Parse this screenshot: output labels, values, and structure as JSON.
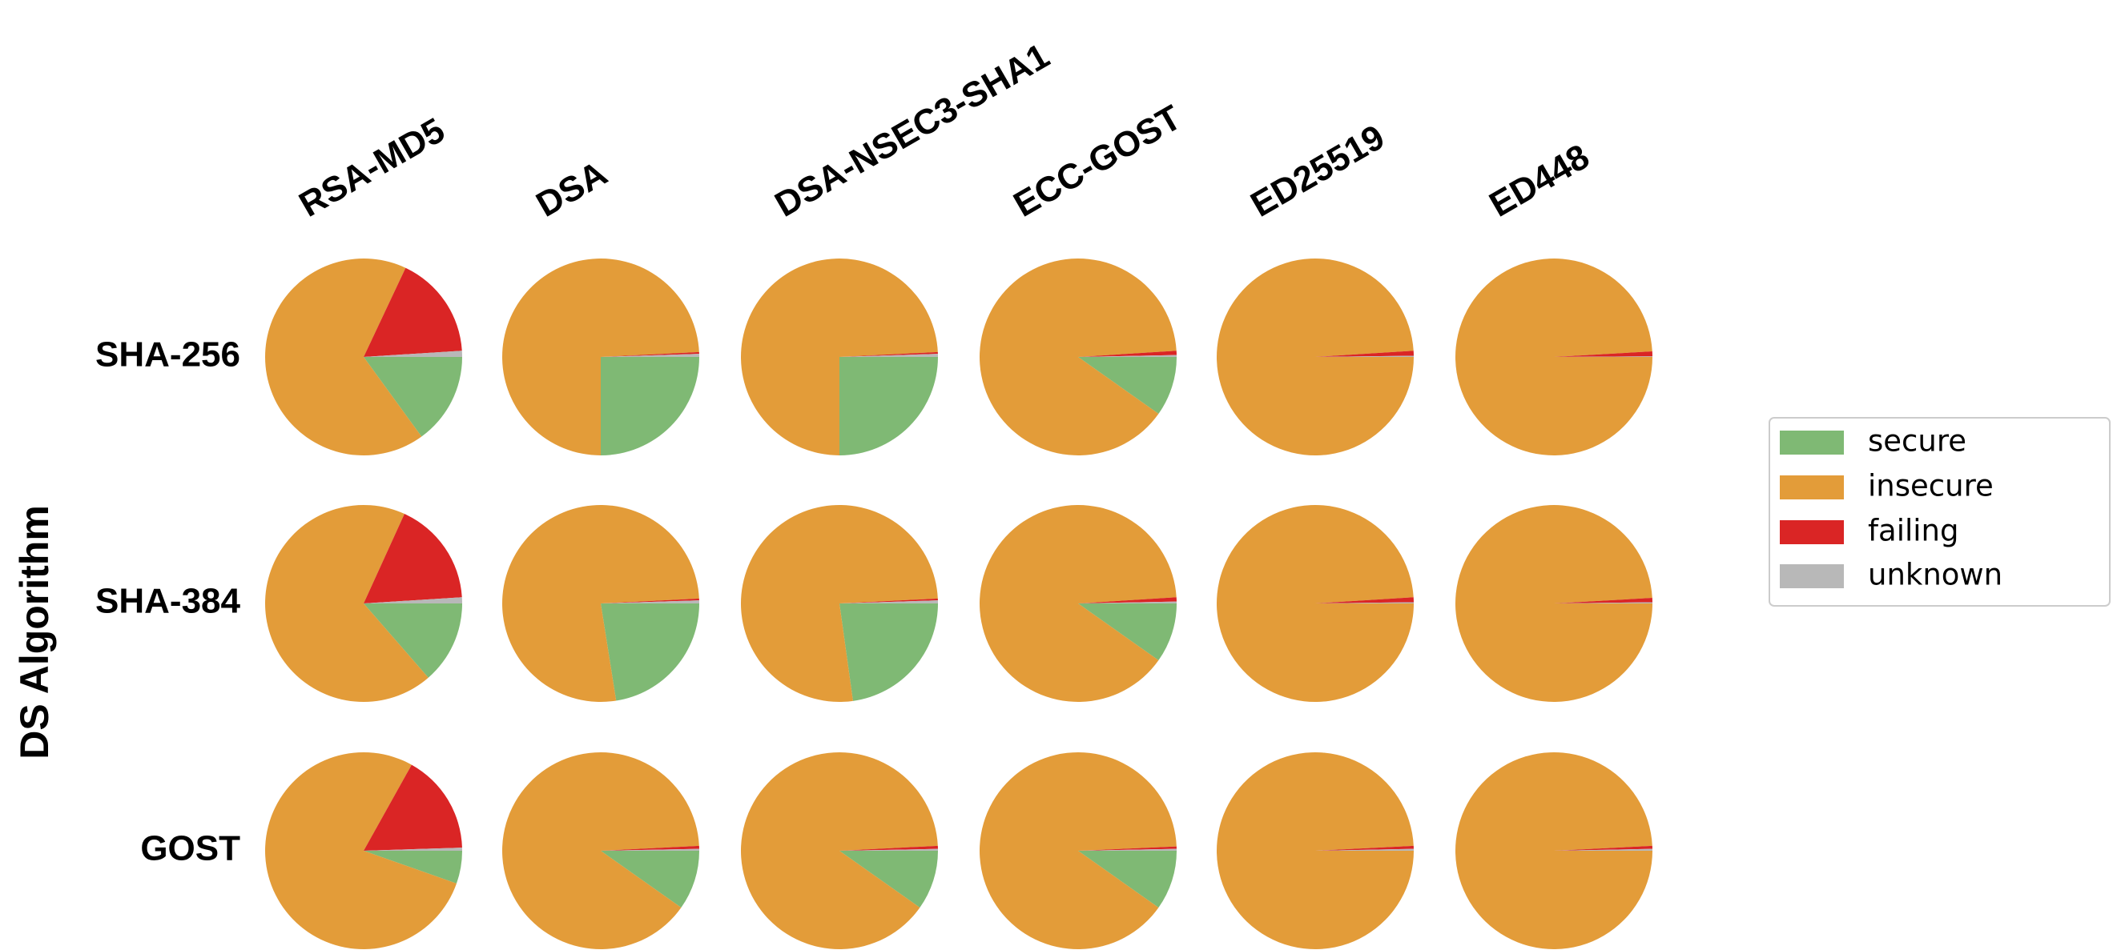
{
  "chart_data": {
    "type": "pie",
    "ylabel": "DS Algorithm",
    "columns": [
      "RSA-MD5",
      "DSA",
      "DSA-NSEC3-SHA1",
      "ECC-GOST",
      "ED25519",
      "ED448"
    ],
    "rows": [
      "SHA-256",
      "SHA-384",
      "GOST"
    ],
    "labels": [
      "secure",
      "insecure",
      "failing",
      "unknown"
    ],
    "colors": [
      "#7fb974",
      "#e39c39",
      "#da2525",
      "#b8b8b8"
    ],
    "values": [
      [
        [
          15,
          67,
          17,
          1
        ],
        [
          25,
          74.2,
          0.3,
          0.5
        ],
        [
          25,
          74.2,
          0.3,
          0.5
        ],
        [
          9.8,
          89.2,
          0.7,
          0.3
        ],
        [
          0,
          99,
          0.8,
          0.2
        ],
        [
          0,
          99.1,
          0.8,
          0.1
        ]
      ],
      [
        [
          13.6,
          68.2,
          17.2,
          1
        ],
        [
          22.5,
          76.7,
          0.3,
          0.5
        ],
        [
          22.8,
          76.4,
          0.3,
          0.5
        ],
        [
          9.8,
          89.2,
          0.7,
          0.3
        ],
        [
          0,
          99,
          0.8,
          0.2
        ],
        [
          0,
          99.1,
          0.7,
          0.2
        ]
      ],
      [
        [
          5.4,
          77.7,
          16.4,
          0.5
        ],
        [
          9.8,
          89.4,
          0.5,
          0.3
        ],
        [
          9.8,
          89.4,
          0.5,
          0.3
        ],
        [
          9.8,
          89.5,
          0.4,
          0.3
        ],
        [
          0,
          99.2,
          0.5,
          0.3
        ],
        [
          0,
          99.2,
          0.5,
          0.3
        ]
      ]
    ],
    "legend": "right"
  }
}
